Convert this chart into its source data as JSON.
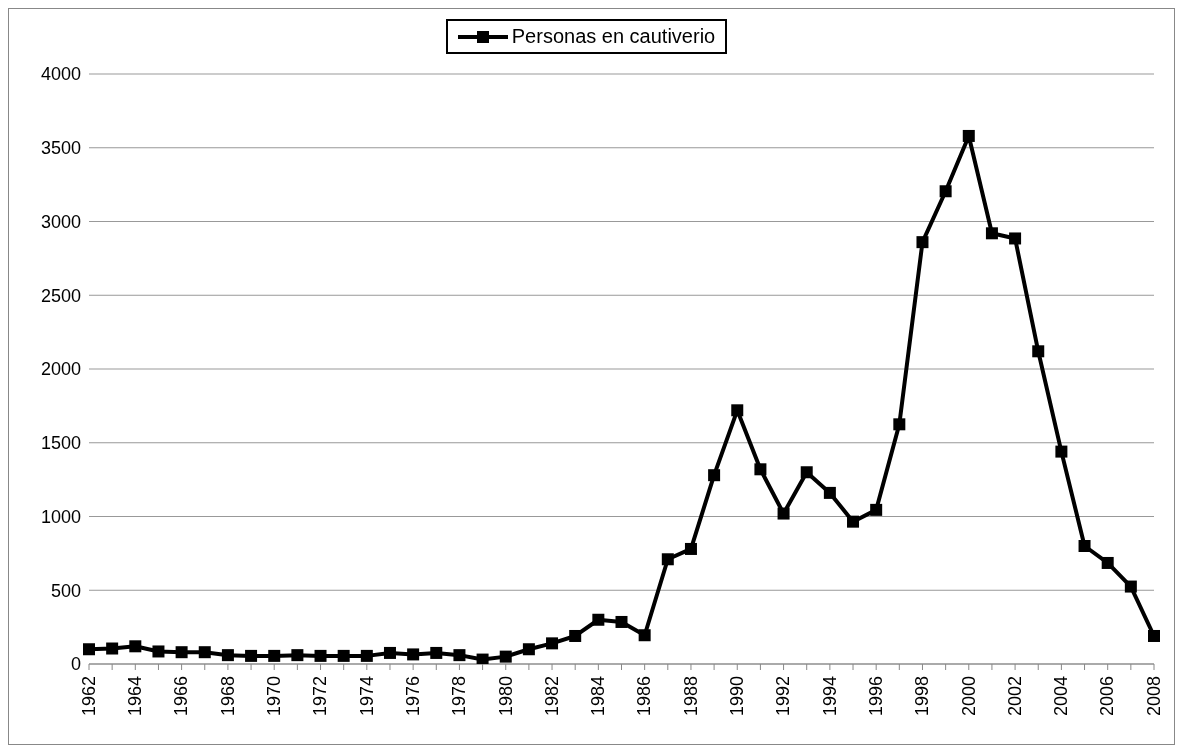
{
  "chart_data": {
    "type": "line",
    "categories": [
      "1962",
      null,
      "1964",
      null,
      "1966",
      null,
      "1968",
      null,
      "1970",
      null,
      "1972",
      null,
      "1974",
      null,
      "1976",
      null,
      "1978",
      null,
      "1980",
      null,
      "1982",
      null,
      "1984",
      null,
      "1986",
      null,
      "1988",
      null,
      "1990",
      null,
      "1992",
      null,
      "1994",
      null,
      "1996",
      null,
      "1998",
      null,
      "2000",
      null,
      "2002",
      null,
      "2004",
      null,
      "2006",
      null,
      "2008"
    ],
    "series": [
      {
        "name": "Personas en cautiverio",
        "color": "#000000",
        "values": [
          100,
          105,
          120,
          85,
          80,
          80,
          60,
          55,
          55,
          60,
          55,
          55,
          55,
          75,
          65,
          75,
          60,
          30,
          50,
          100,
          140,
          190,
          300,
          285,
          195,
          710,
          780,
          1280,
          1720,
          1320,
          1020,
          1300,
          1160,
          965,
          1045,
          1625,
          2860,
          3205,
          3580,
          2920,
          2885,
          2120,
          1440,
          800,
          685,
          525,
          190
        ]
      }
    ],
    "ylim": [
      0,
      4000
    ],
    "yticks": [
      0,
      500,
      1000,
      1500,
      2000,
      2500,
      3000,
      3500,
      4000
    ],
    "grid": "y",
    "legend": "top",
    "marker": "square",
    "line_style": "solid"
  }
}
